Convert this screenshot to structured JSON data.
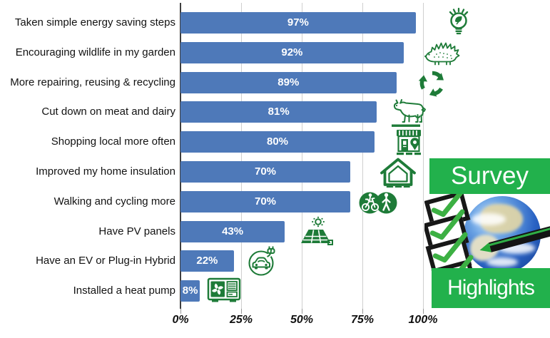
{
  "chart_data": {
    "type": "bar",
    "orientation": "horizontal",
    "title": "",
    "xlabel": "",
    "ylabel": "",
    "categories": [
      "Taken simple energy saving steps",
      "Encouraging wildlife in my garden",
      "More repairing, reusing & recycling",
      "Cut down on meat and dairy",
      "Shopping local more often",
      "Improved my home insulation",
      "Walking and cycling more",
      "Have PV panels",
      "Have an EV or Plug-in Hybrid",
      "Installed a heat pump"
    ],
    "values": [
      97,
      92,
      89,
      81,
      80,
      70,
      70,
      43,
      22,
      8
    ],
    "value_labels": [
      "97%",
      "92%",
      "89%",
      "81%",
      "80%",
      "70%",
      "70%",
      "43%",
      "22%",
      "8%"
    ],
    "icons": [
      "eco-lightbulb",
      "hedgehog",
      "recycling-arrows",
      "cow",
      "local-shop",
      "house-insulation",
      "walking-cycling",
      "solar-panel",
      "ev-charging",
      "heat-pump"
    ],
    "x_ticks": [
      "0%",
      "25%",
      "50%",
      "75%",
      "100%"
    ],
    "x_tick_values": [
      0,
      25,
      50,
      75,
      100
    ],
    "xlim": [
      0,
      100
    ],
    "grid": "vertical",
    "legend": "none"
  },
  "colors": {
    "bar": "#4e79b9",
    "value_text": "#ffffff",
    "icon_green": "#1e7b38",
    "banner_green": "#22b14c",
    "check_green": "#3cb043",
    "gridline": "#cfcfcf",
    "axis": "#3f3f3f"
  },
  "badge": {
    "line1": "Survey",
    "line2": "Highlights",
    "checkmark_count": 4,
    "graphics": [
      "earth",
      "checked-boxes",
      "marker-pen"
    ]
  }
}
